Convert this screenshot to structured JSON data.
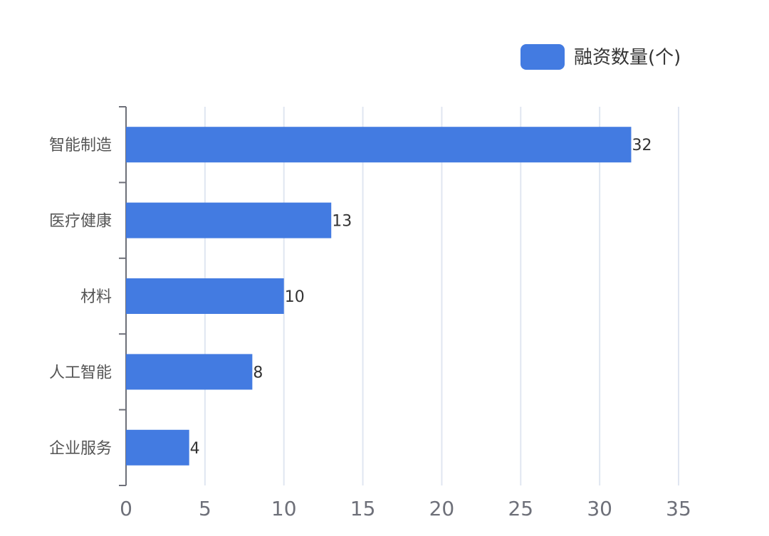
{
  "chart_data": {
    "type": "bar",
    "orientation": "horizontal",
    "categories": [
      "智能制造",
      "医疗健康",
      "材料",
      "人工智能",
      "企业服务"
    ],
    "series": [
      {
        "name": "融资数量(个)",
        "values": [
          32,
          13,
          10,
          8,
          4
        ],
        "color": "#437be1"
      }
    ],
    "xlim": [
      0,
      35
    ],
    "xticks": [
      0,
      5,
      10,
      15,
      20,
      25,
      30,
      35
    ],
    "grid": true,
    "legend_position": "top-right",
    "data_labels": true,
    "title": "",
    "xlabel": "",
    "ylabel": ""
  }
}
